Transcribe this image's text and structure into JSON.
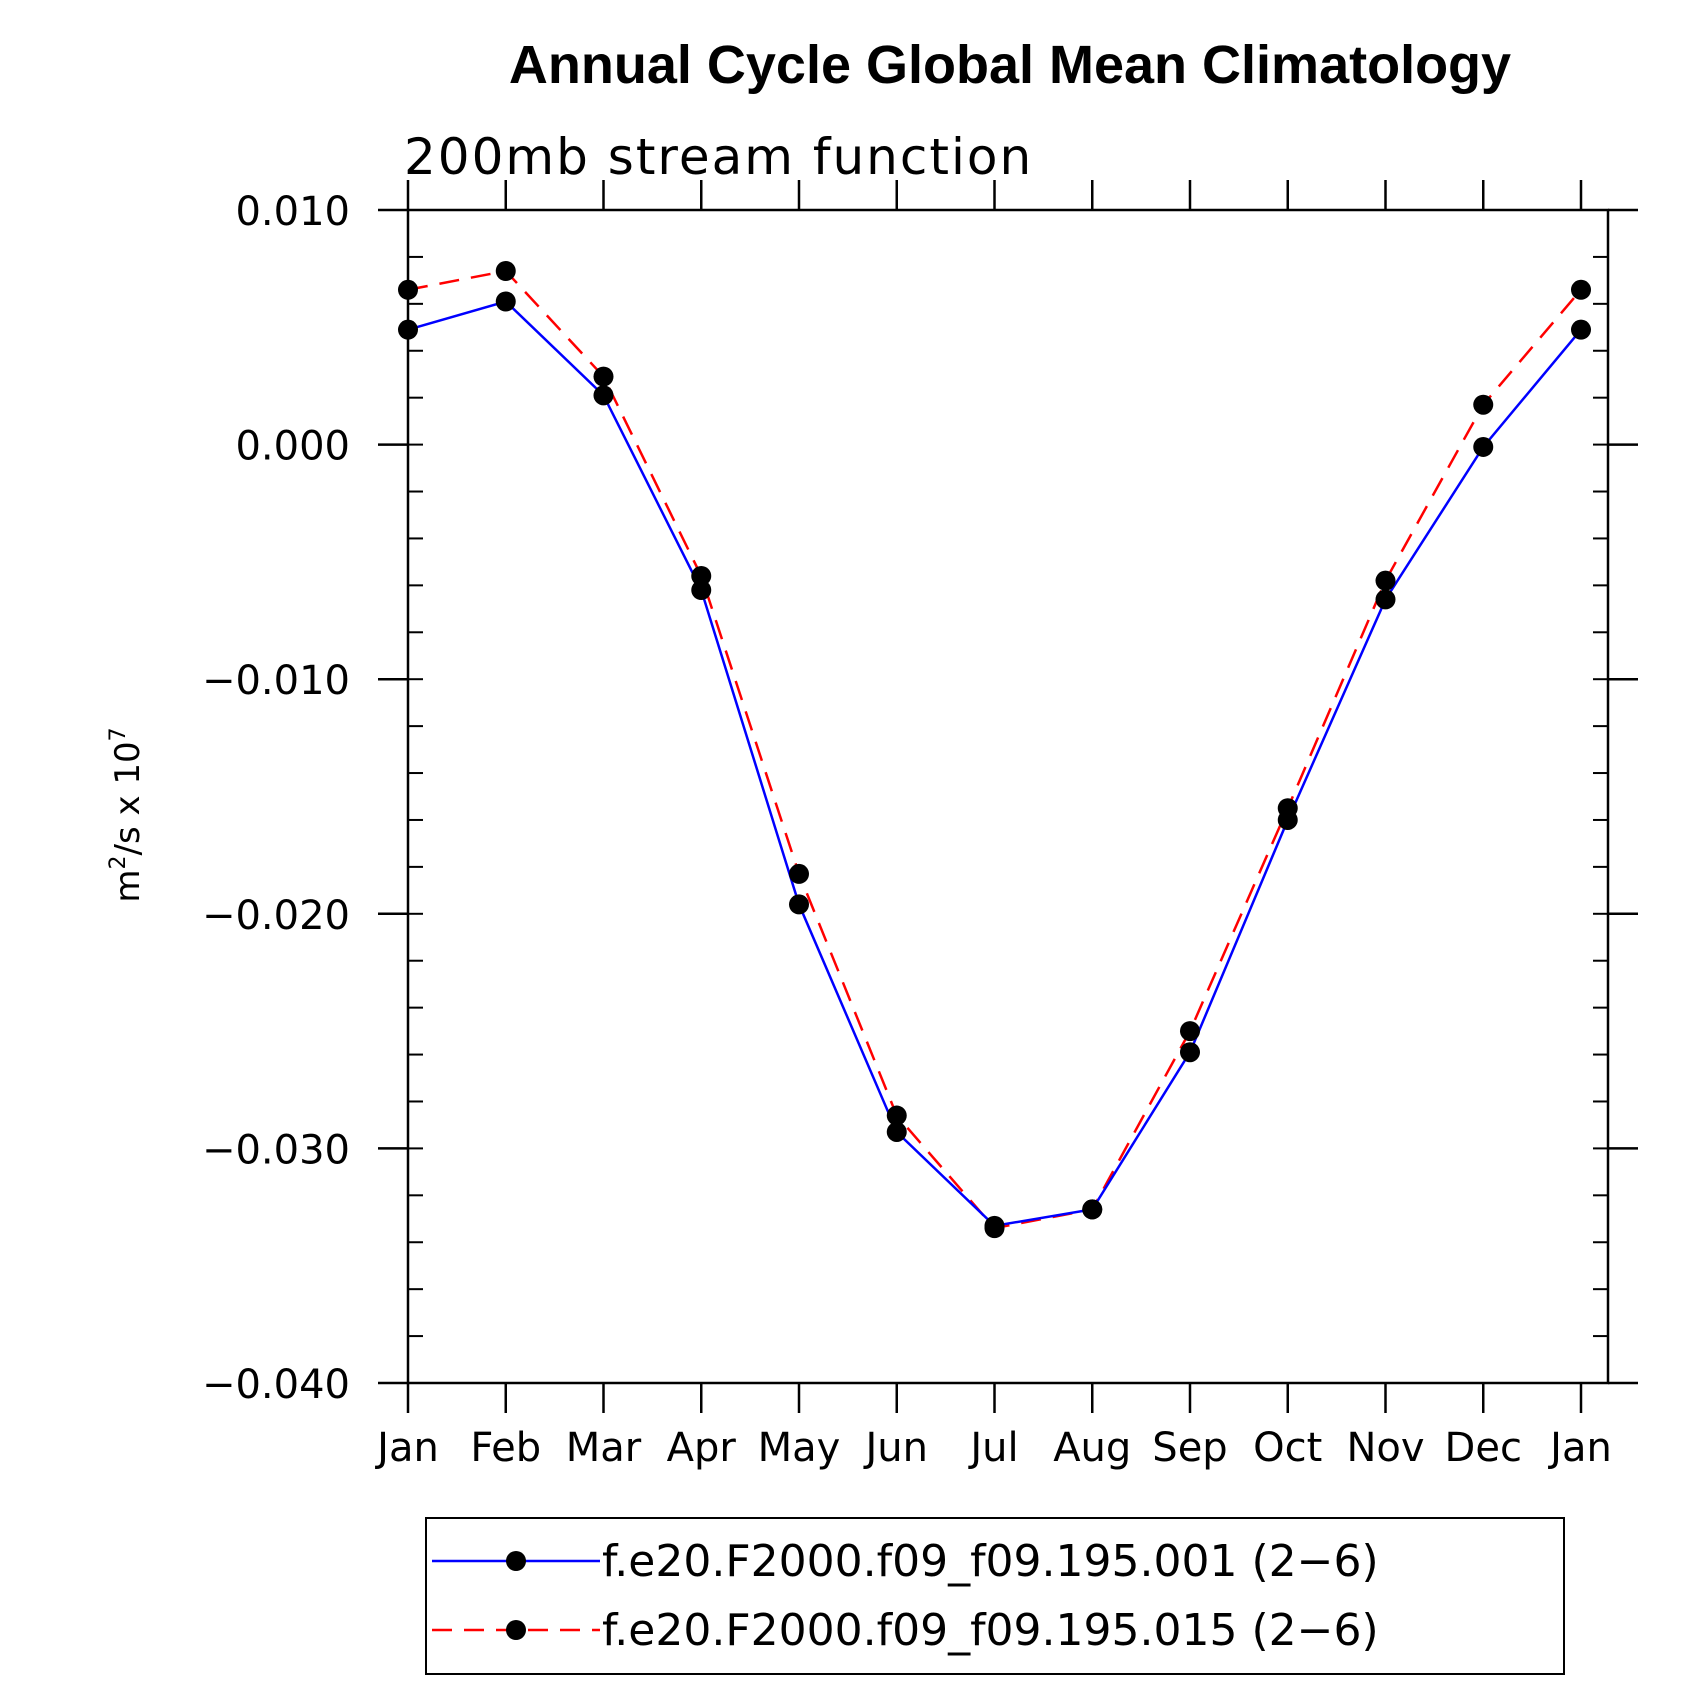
{
  "chart_data": {
    "type": "line",
    "title": "Annual Cycle Global Mean Climatology",
    "subtitle": "200mb stream function",
    "ylabel": "m^2/s x 10^7",
    "ylabel_parts": {
      "base": "m",
      "exp1": "2",
      "mid": "/s x 10",
      "exp2": "7"
    },
    "xlabel": "",
    "categories": [
      "Jan",
      "Feb",
      "Mar",
      "Apr",
      "May",
      "Jun",
      "Jul",
      "Aug",
      "Sep",
      "Oct",
      "Nov",
      "Dec",
      "Jan"
    ],
    "ylim": [
      -0.04,
      0.01
    ],
    "yticks": [
      0.01,
      0.0,
      -0.01,
      -0.02,
      -0.03,
      -0.04
    ],
    "ytick_labels": [
      "0.010",
      "0.000",
      "−0.010",
      "−0.020",
      "−0.030",
      "−0.040"
    ],
    "grid": false,
    "legend_position": "bottom",
    "series": [
      {
        "name": "f.e20.F2000.f09_f09.195.001 (2−6)",
        "color": "#0000ff",
        "line_style": "solid",
        "marker": "filled-circle",
        "values": [
          0.0049,
          0.0061,
          0.0021,
          -0.0062,
          -0.0196,
          -0.0293,
          -0.0333,
          -0.0326,
          -0.0259,
          -0.016,
          -0.0066,
          -0.0001,
          0.0049
        ]
      },
      {
        "name": "f.e20.F2000.f09_f09.195.015 (2−6)",
        "color": "#ff0000",
        "line_style": "dashed",
        "marker": "filled-circle",
        "values": [
          0.0066,
          0.0074,
          0.0029,
          -0.0056,
          -0.0183,
          -0.0286,
          -0.0334,
          -0.0326,
          -0.025,
          -0.0155,
          -0.0058,
          0.0017,
          0.0066
        ]
      }
    ]
  }
}
